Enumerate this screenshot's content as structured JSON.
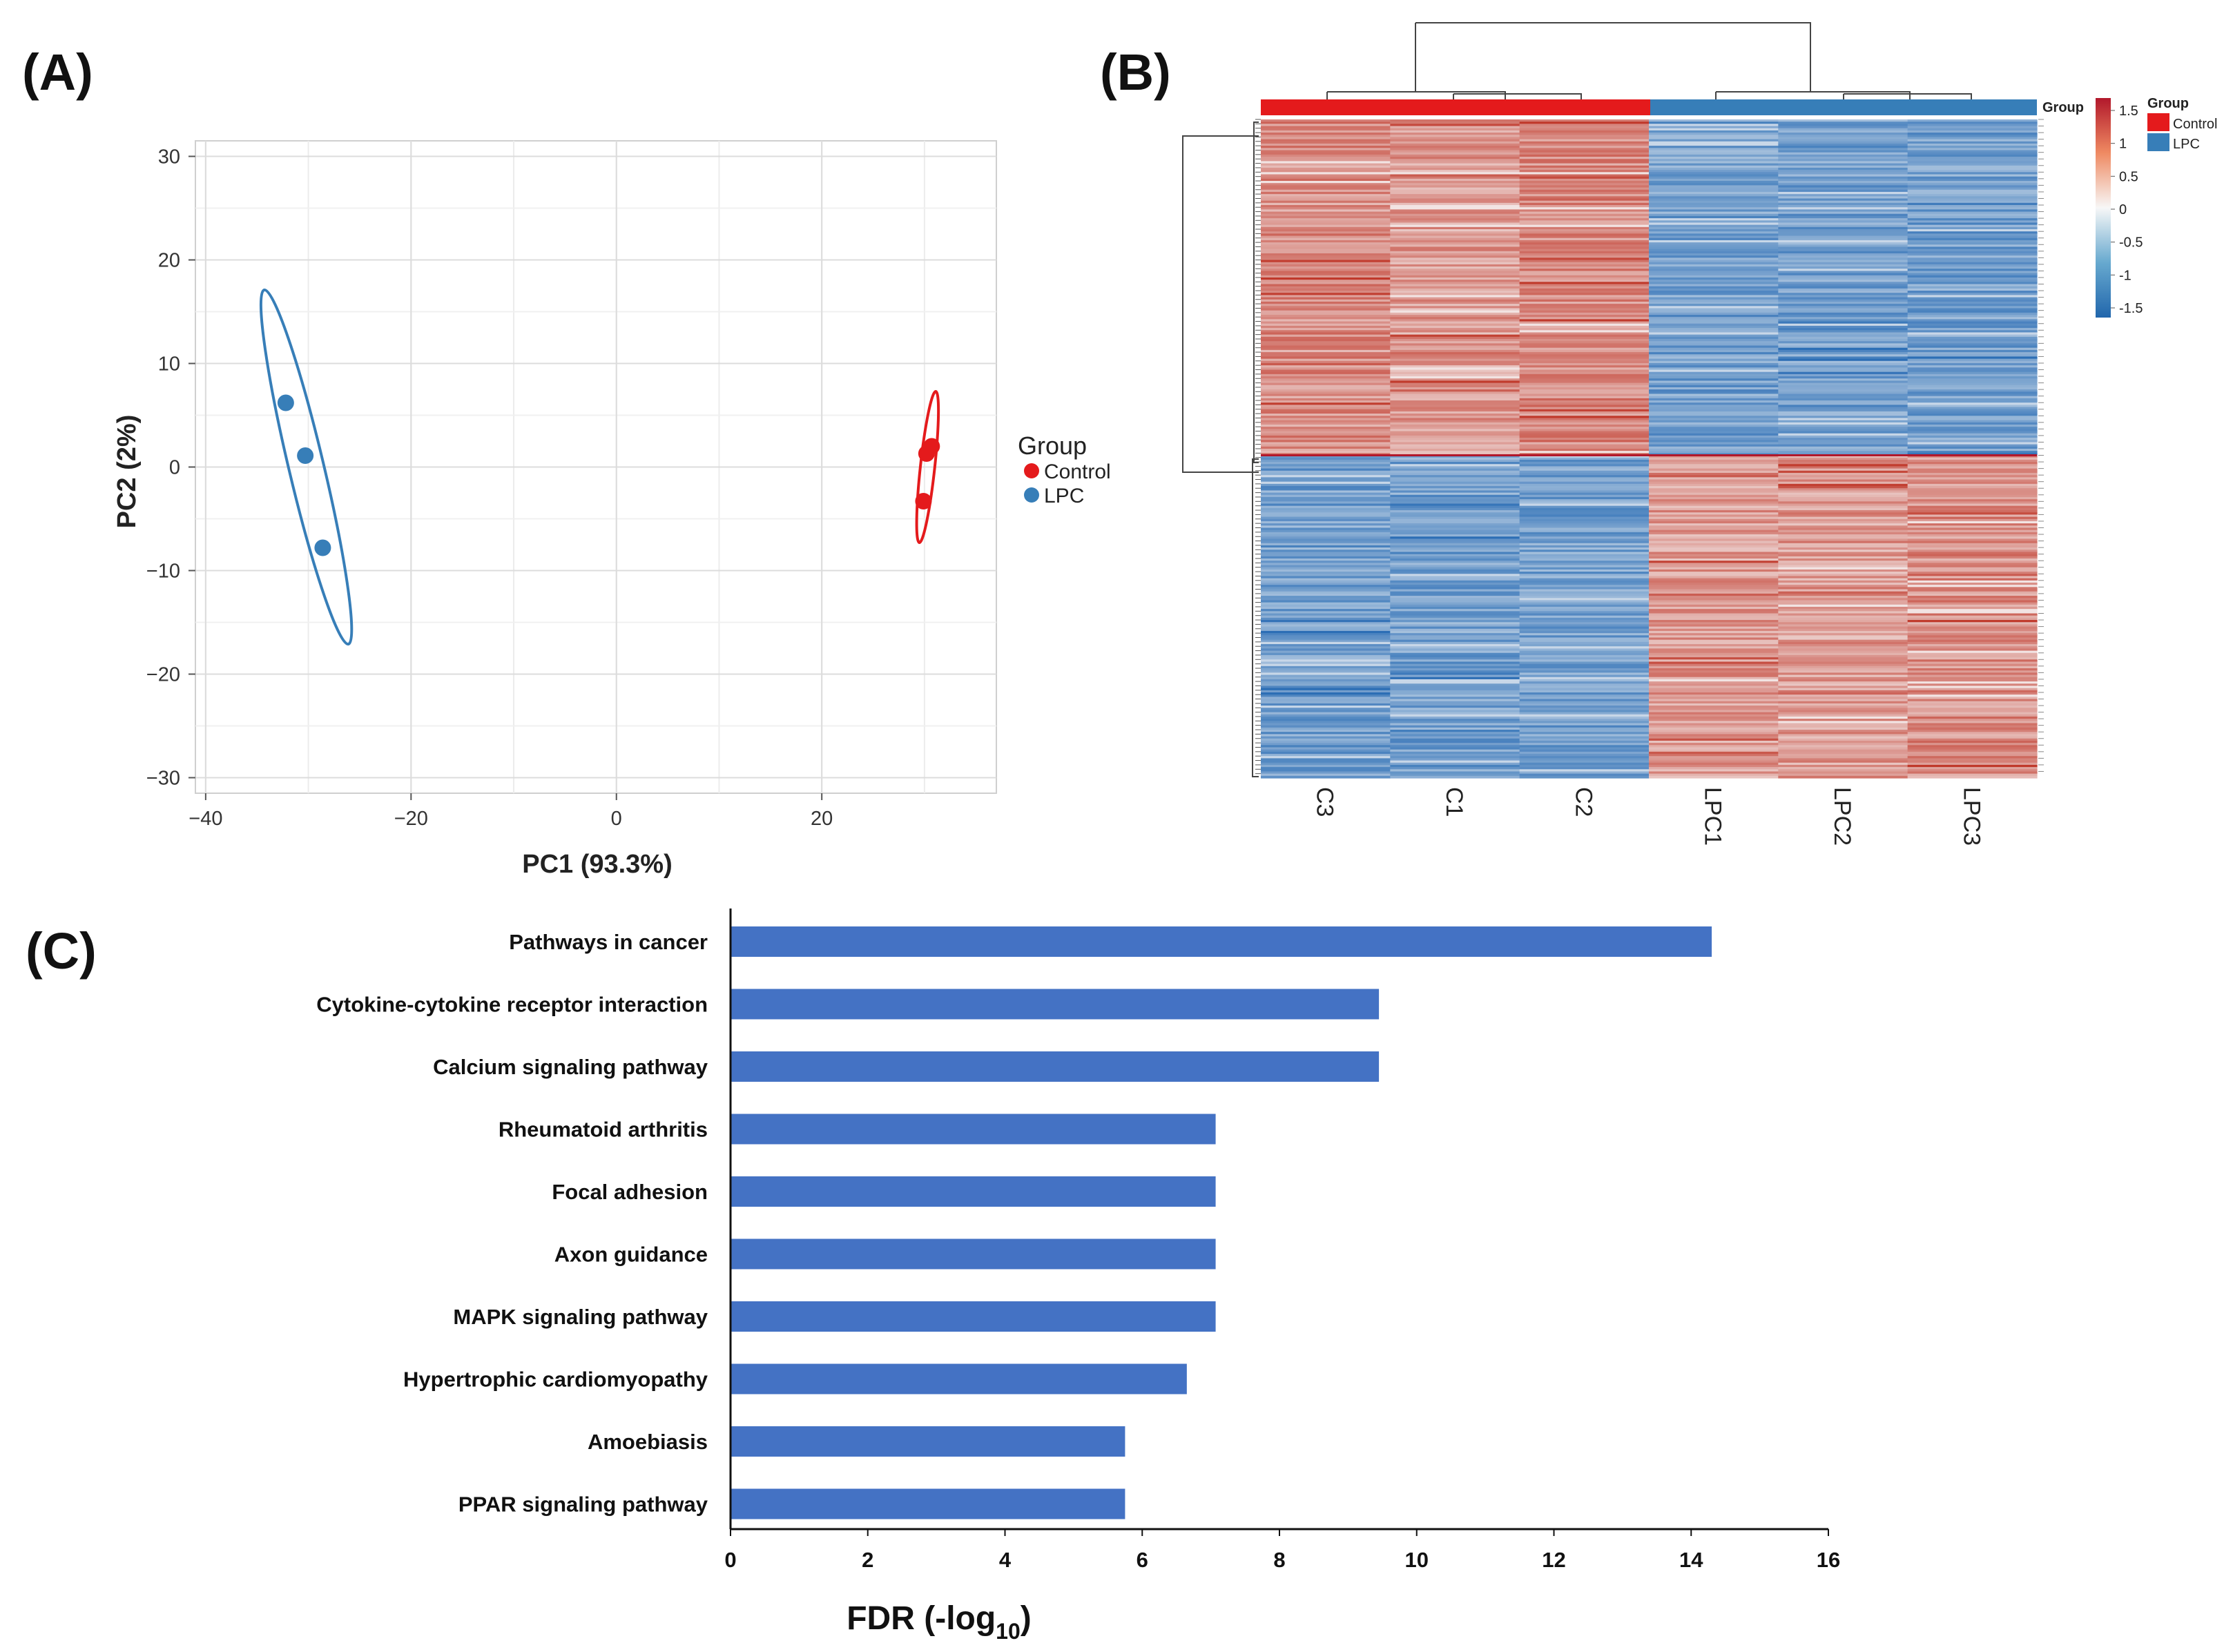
{
  "panels": {
    "a": "(A)",
    "b": "(B)",
    "c": "(C)"
  },
  "colors": {
    "control": "#e41a1c",
    "lpc": "#377eb8",
    "bar": "#4472c4",
    "hm_low": "#2c6eb5",
    "hm_mid": "#f7f7f7",
    "hm_high": "#c0392b"
  },
  "chart_data": [
    {
      "id": "pca",
      "type": "scatter",
      "title": "",
      "xlabel": "PC1 (93.3%)",
      "ylabel": "PC2 (2%)",
      "xlim": [
        -41,
        37
      ],
      "ylim": [
        -31.5,
        31.5
      ],
      "xticks": [
        -40,
        -20,
        0,
        20
      ],
      "xtick_labels": [
        "−40",
        "−20",
        "0",
        "20"
      ],
      "yticks": [
        30,
        20,
        10,
        0,
        -10,
        -20,
        -30
      ],
      "ytick_labels": [
        "30",
        "20",
        "10",
        "0",
        "−10",
        "−20",
        "−30"
      ],
      "legend_title": "Group",
      "series": [
        {
          "name": "Control",
          "color": "#e41a1c",
          "points": [
            [
              30.2,
              1.3
            ],
            [
              30.7,
              2.0
            ],
            [
              29.9,
              -3.3
            ]
          ],
          "ellipse": {
            "cx": 30.3,
            "cy": 0.0,
            "tip": [
              31.1,
              7.3
            ],
            "minor": 0.7
          }
        },
        {
          "name": "LPC",
          "color": "#377eb8",
          "points": [
            [
              -32.2,
              6.2
            ],
            [
              -30.3,
              1.1
            ],
            [
              -28.6,
              -7.8
            ]
          ],
          "ellipse": {
            "cx": -30.2,
            "cy": 0.0,
            "tip": [
              -34.3,
              17.1
            ],
            "minor": 1.7
          }
        }
      ]
    },
    {
      "id": "heatmap",
      "type": "heatmap",
      "columns": [
        "C3",
        "C1",
        "C2",
        "LPC1",
        "LPC2",
        "LPC3"
      ],
      "column_groups": [
        "Control",
        "Control",
        "Control",
        "LPC",
        "LPC",
        "LPC"
      ],
      "group_annotation_label": "Group",
      "scale_ticks": [
        "1.5",
        "1",
        "0.5",
        "0",
        "-0.5",
        "-1",
        "-1.5"
      ],
      "scale_range": [
        -1.5,
        1.5
      ],
      "legend_title": "Group",
      "legend_items": [
        "Control",
        "LPC"
      ],
      "row_clusters": [
        {
          "name": "up in Control",
          "fraction": 0.51
        },
        {
          "name": "up in LPC",
          "fraction": 0.49
        }
      ]
    },
    {
      "id": "kegg",
      "type": "bar",
      "orientation": "horizontal",
      "xlabel": "FDR (-log",
      "xlabel_sub": "10",
      "xlabel_close": ")",
      "xlim": [
        0,
        16
      ],
      "xticks": [
        "0",
        "2",
        "4",
        "6",
        "8",
        "10",
        "12",
        "14",
        "16"
      ],
      "categories": [
        "Pathways in cancer",
        "Cytokine-cytokine receptor interaction",
        "Calcium signaling pathway",
        "Rheumatoid arthritis",
        "Focal adhesion",
        "Axon guidance",
        "MAPK signaling pathway",
        "Hypertrophic cardiomyopathy",
        "Amoebiasis",
        "PPAR signaling pathway"
      ],
      "values": [
        14.3,
        9.45,
        9.45,
        7.07,
        7.07,
        7.07,
        7.07,
        6.65,
        5.75,
        5.75
      ]
    }
  ]
}
